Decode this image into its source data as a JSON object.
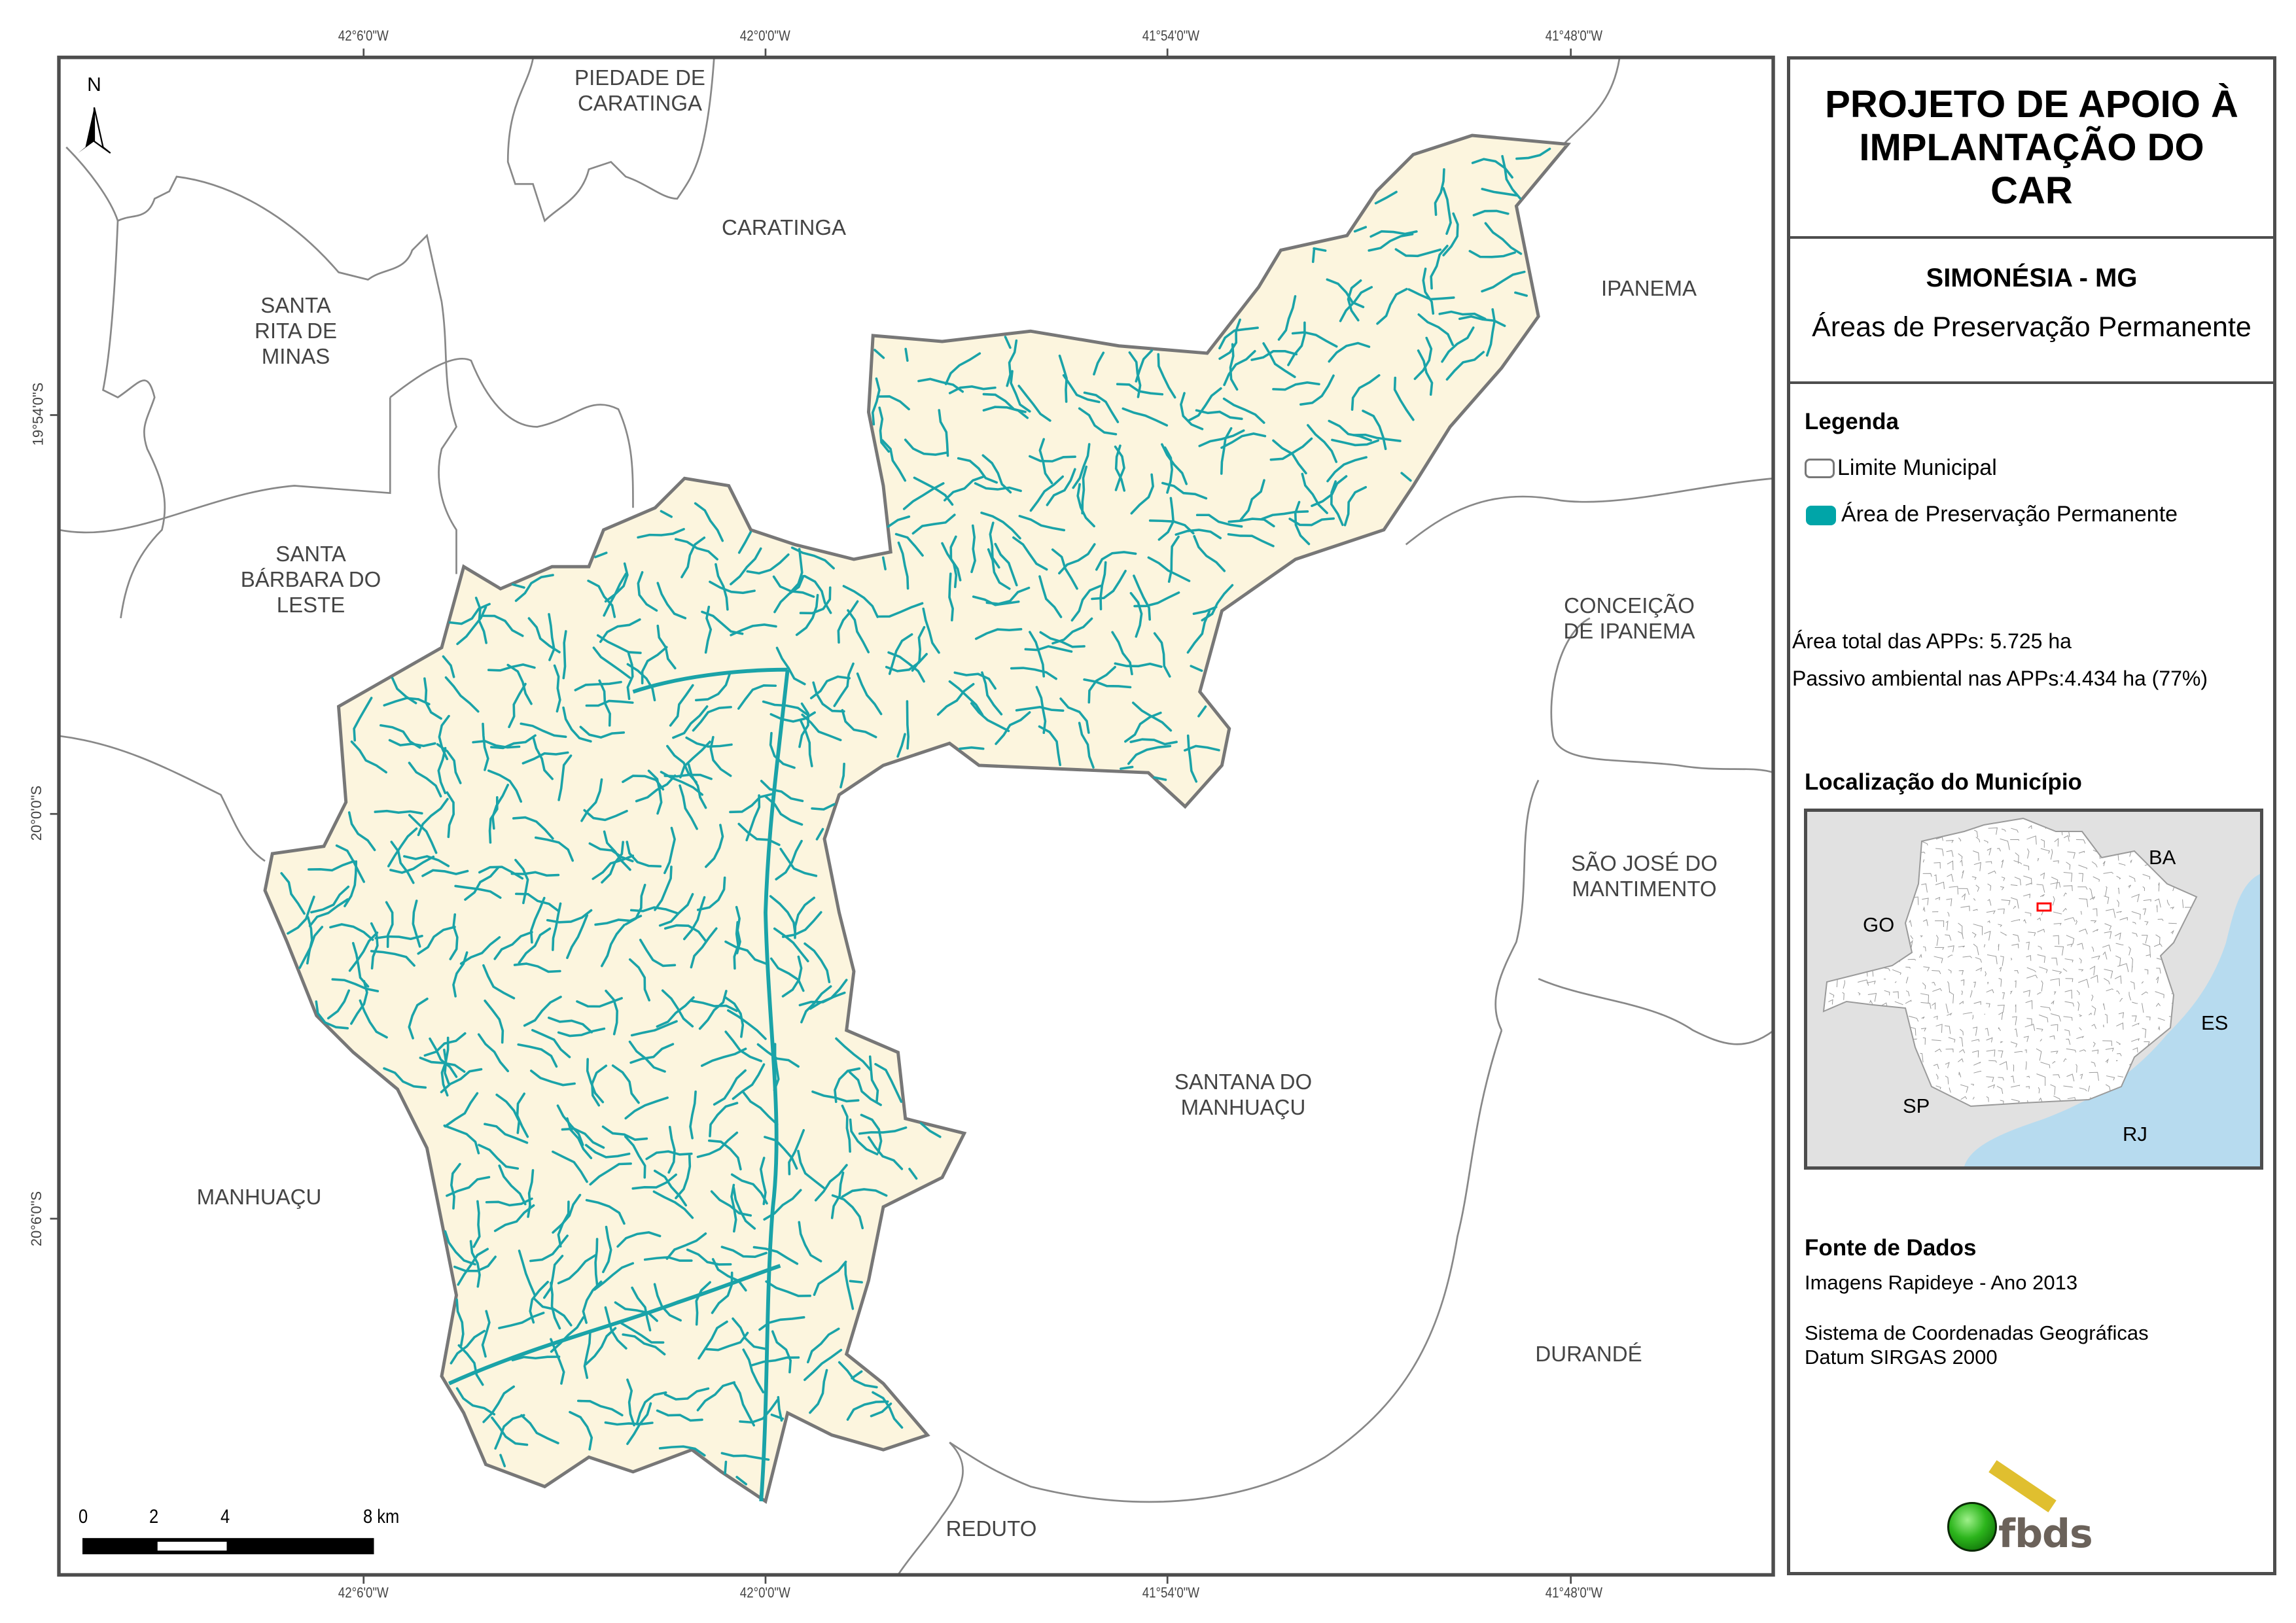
{
  "map": {
    "top_ticks": [
      "42°6'0\"W",
      "42°0'0\"W",
      "41°54'0\"W",
      "41°48'0\"W"
    ],
    "bottom_ticks": [
      "42°6'0\"W",
      "42°0'0\"W",
      "41°54'0\"W",
      "41°48'0\"W"
    ],
    "left_ticks": [
      "19°54'0\"S",
      "20°0'0\"S",
      "20°6'0\"S"
    ],
    "north_arrow_label": "N",
    "municipalities": {
      "piedade": "PIEDADE DE\nCARATINGA",
      "caratinga": "CARATINGA",
      "santa_rita": "SANTA\nRITA DE\nMINAS",
      "ipanema": "IPANEMA",
      "santa_barbara": "SANTA\nBÁRBARA DO\nLESTE",
      "conceicao": "CONCEIÇÃO\nDE IPANEMA",
      "sao_jose": "SÃO JOSÉ DO\nMANTIMENTO",
      "santana": "SANTANA DO\nMANHUAÇU",
      "manhuacu": "MANHUAÇU",
      "durande": "DURANDÉ",
      "reduto": "REDUTO"
    },
    "scale_bar": {
      "labels": [
        "0",
        "2",
        "4",
        "8 km"
      ]
    },
    "colors": {
      "municipality_fill": "#fcf5de",
      "app": "#1aa3a8",
      "boundary": "#808080"
    }
  },
  "panel": {
    "title": "PROJETO DE APOIO À IMPLANTAÇÃO DO CAR",
    "municipality": "SIMONÉSIA - MG",
    "subtitle": "Áreas de Preservação Permanente",
    "legend_heading": "Legenda",
    "legend_items": [
      {
        "label": "Limite Municipal",
        "color": "#ffffff"
      },
      {
        "label": "Área de Preservação Permanente",
        "color": "#00a5a8"
      }
    ],
    "stats": {
      "total": "Área total das APPs: 5.725 ha",
      "passivo": "Passivo ambiental nas APPs:4.434 ha (77%)"
    },
    "location_heading": "Localização do Município",
    "inset_labels": {
      "go": "GO",
      "ba": "BA",
      "es": "ES",
      "sp": "SP",
      "rj": "RJ"
    },
    "source_heading": "Fonte de Dados",
    "source_lines": [
      "Imagens Rapideye - Ano 2013",
      "Sistema de Coordenadas Geográficas",
      "Datum SIRGAS 2000"
    ],
    "logo_text": "fbds"
  }
}
